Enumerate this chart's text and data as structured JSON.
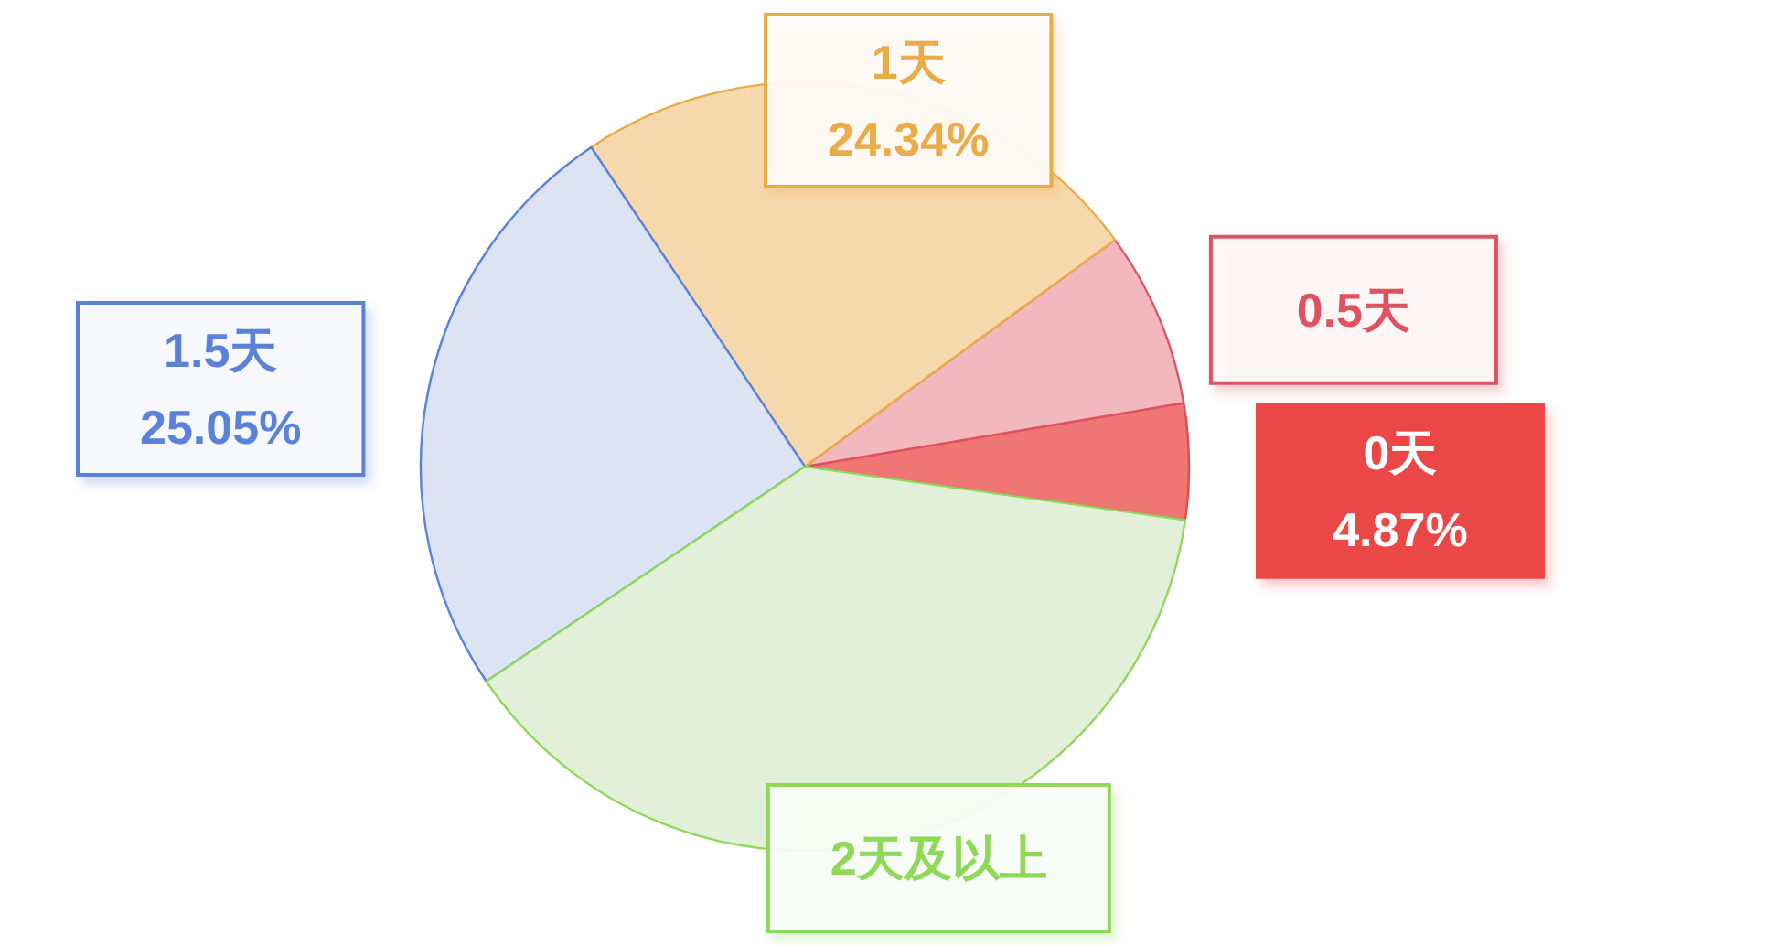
{
  "chart_data": {
    "type": "pie",
    "categories": [
      "0天",
      "0.5天",
      "1天",
      "1.5天",
      "2天及以上"
    ],
    "values": [
      4.87,
      7.4,
      24.34,
      25.05,
      38.34
    ],
    "value_labels": [
      "4.87%",
      null,
      "24.34%",
      "25.05%",
      null
    ],
    "colors": [
      "#f07676",
      "#f2b8be",
      "#f5d9ac",
      "#dce3f2",
      "#e2efd9"
    ]
  }
}
